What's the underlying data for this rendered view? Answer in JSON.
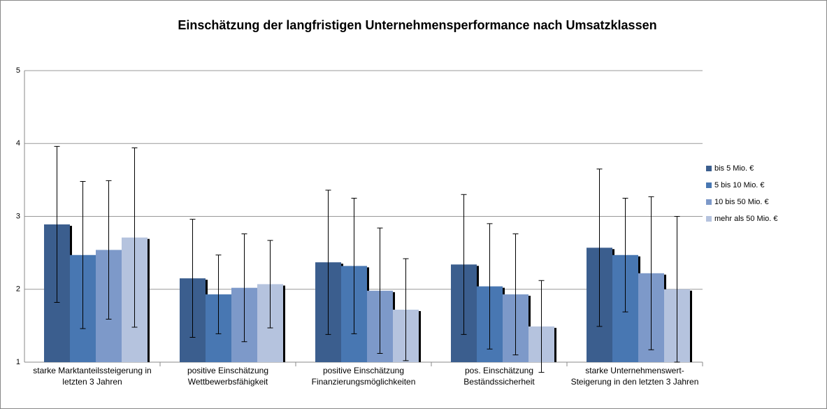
{
  "chart_data": {
    "type": "bar",
    "title": "Einschätzung der langfristigen  Unternehmensperformance nach Umsatzklassen",
    "categories": [
      "starke Marktanteilssteigerung in letzten 3 Jahren",
      "positive Einschätzung Wettbewerbsfähigkeit",
      "positive Einschätzung Finanzierungsmöglichkeiten",
      "pos. Einschätzung Beständssicherheit",
      "starke Unternehmenswert-Steigerung in den letzten 3 Jahren"
    ],
    "series": [
      {
        "name": "bis 5 Mio. €",
        "color": "#3b5e8e",
        "values": [
          2.89,
          2.15,
          2.37,
          2.34,
          2.57
        ],
        "errors": [
          1.07,
          0.81,
          0.99,
          0.96,
          1.08
        ]
      },
      {
        "name": "5 bis 10 Mio. €",
        "color": "#4877b2",
        "values": [
          2.47,
          1.93,
          2.32,
          2.04,
          2.47
        ],
        "errors": [
          1.01,
          0.54,
          0.93,
          0.86,
          0.78
        ]
      },
      {
        "name": "10 bis 50 Mio. €",
        "color": "#7d99c9",
        "values": [
          2.54,
          2.02,
          1.98,
          1.93,
          2.22
        ],
        "errors": [
          0.95,
          0.74,
          0.86,
          0.83,
          1.05
        ]
      },
      {
        "name": "mehr als 50 Mio. €",
        "color": "#b5c3de",
        "values": [
          2.71,
          2.07,
          1.72,
          1.49,
          2.0
        ],
        "errors": [
          1.23,
          0.6,
          0.7,
          0.63,
          1.0
        ]
      }
    ],
    "ylim": [
      1,
      5
    ],
    "yticks": [
      1,
      2,
      3,
      4,
      5
    ],
    "grid": true,
    "legend": "right"
  }
}
